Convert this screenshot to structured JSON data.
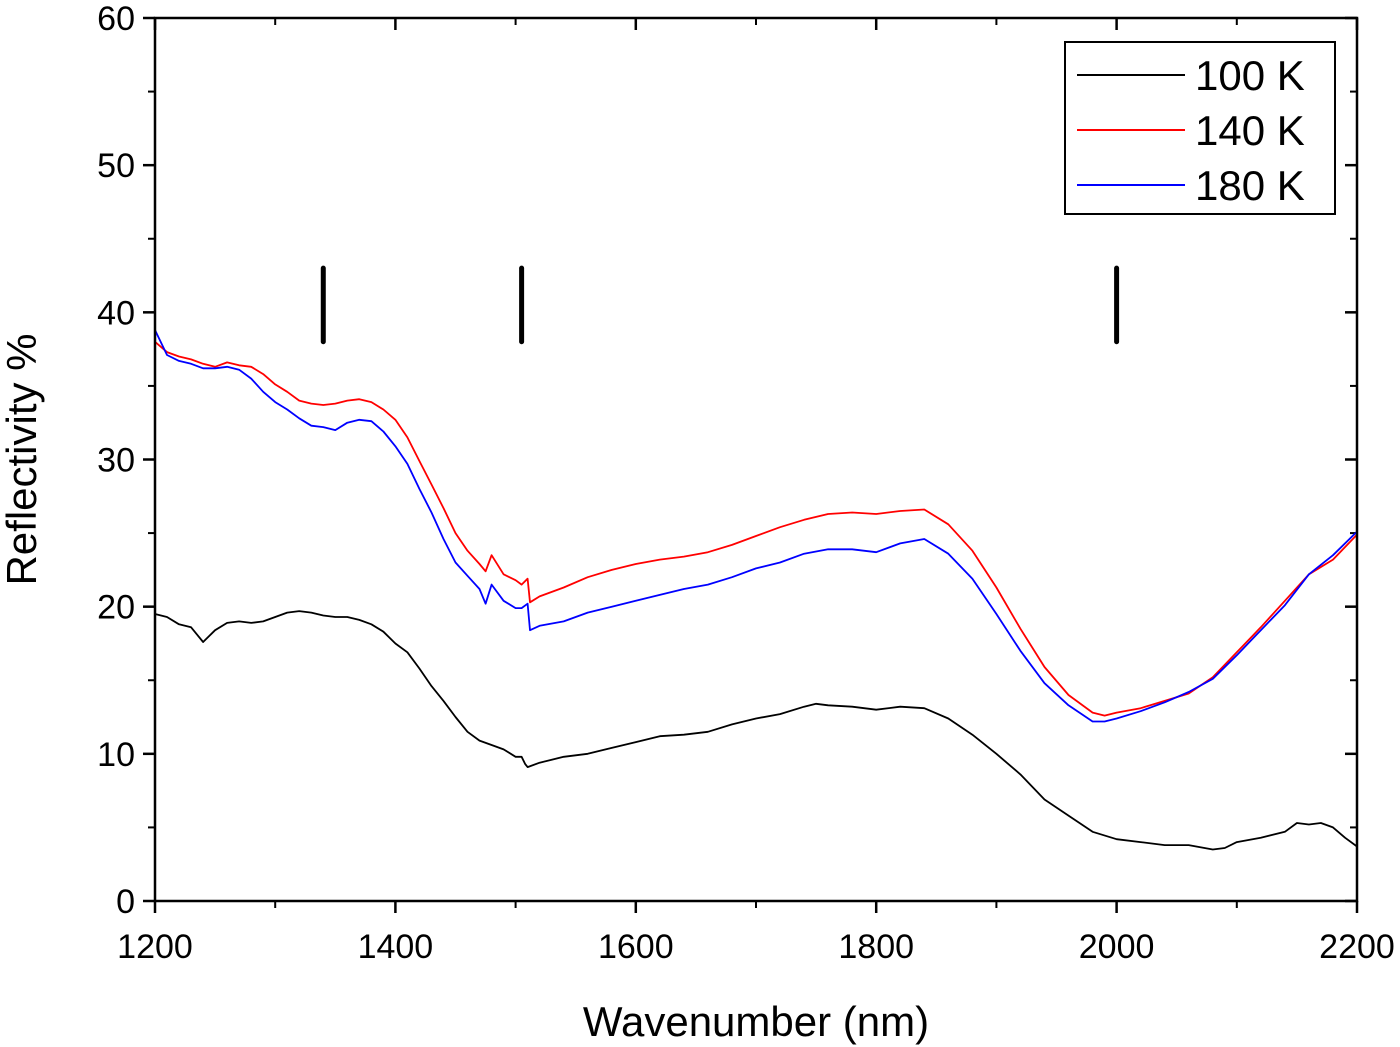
{
  "chart_data": {
    "type": "line",
    "title": "",
    "xlabel": "Wavenumber (nm)",
    "ylabel": "Reflectivity %",
    "xlim": [
      1200,
      2200
    ],
    "ylim": [
      0,
      60
    ],
    "x_ticks": [
      1200,
      1400,
      1600,
      1800,
      2000,
      2200
    ],
    "y_ticks": [
      0,
      10,
      20,
      30,
      40,
      50,
      60
    ],
    "x_tick_labels": [
      "1200",
      "1400",
      "1600",
      "1800",
      "2000",
      "2200"
    ],
    "y_tick_labels": [
      "0",
      "10",
      "20",
      "30",
      "40",
      "50",
      "60"
    ],
    "grid": false,
    "legend_position": "top-right",
    "markers": [
      {
        "x": 1340,
        "y_range": [
          38,
          43
        ]
      },
      {
        "x": 1505,
        "y_range": [
          38,
          43
        ]
      },
      {
        "x": 2000,
        "y_range": [
          38,
          43
        ]
      }
    ],
    "series": [
      {
        "name": "100 K",
        "color": "#000000",
        "points": [
          [
            1200,
            19.5
          ],
          [
            1210,
            19.3
          ],
          [
            1220,
            18.8
          ],
          [
            1230,
            18.6
          ],
          [
            1240,
            17.6
          ],
          [
            1250,
            18.4
          ],
          [
            1260,
            18.9
          ],
          [
            1270,
            19.0
          ],
          [
            1280,
            18.9
          ],
          [
            1290,
            19.0
          ],
          [
            1300,
            19.3
          ],
          [
            1310,
            19.6
          ],
          [
            1320,
            19.7
          ],
          [
            1330,
            19.6
          ],
          [
            1340,
            19.4
          ],
          [
            1350,
            19.3
          ],
          [
            1360,
            19.3
          ],
          [
            1370,
            19.1
          ],
          [
            1380,
            18.8
          ],
          [
            1390,
            18.3
          ],
          [
            1400,
            17.5
          ],
          [
            1410,
            16.9
          ],
          [
            1420,
            15.8
          ],
          [
            1430,
            14.6
          ],
          [
            1440,
            13.6
          ],
          [
            1450,
            12.5
          ],
          [
            1460,
            11.5
          ],
          [
            1470,
            10.9
          ],
          [
            1480,
            10.6
          ],
          [
            1490,
            10.3
          ],
          [
            1500,
            9.8
          ],
          [
            1505,
            9.8
          ],
          [
            1508,
            9.3
          ],
          [
            1510,
            9.1
          ],
          [
            1520,
            9.4
          ],
          [
            1530,
            9.6
          ],
          [
            1540,
            9.8
          ],
          [
            1560,
            10.0
          ],
          [
            1580,
            10.4
          ],
          [
            1600,
            10.8
          ],
          [
            1620,
            11.2
          ],
          [
            1640,
            11.3
          ],
          [
            1660,
            11.5
          ],
          [
            1680,
            12.0
          ],
          [
            1700,
            12.4
          ],
          [
            1720,
            12.7
          ],
          [
            1740,
            13.2
          ],
          [
            1750,
            13.4
          ],
          [
            1760,
            13.3
          ],
          [
            1780,
            13.2
          ],
          [
            1800,
            13.0
          ],
          [
            1820,
            13.2
          ],
          [
            1840,
            13.1
          ],
          [
            1860,
            12.4
          ],
          [
            1880,
            11.3
          ],
          [
            1900,
            10.0
          ],
          [
            1920,
            8.6
          ],
          [
            1940,
            6.9
          ],
          [
            1960,
            5.8
          ],
          [
            1980,
            4.7
          ],
          [
            2000,
            4.2
          ],
          [
            2020,
            4.0
          ],
          [
            2040,
            3.8
          ],
          [
            2060,
            3.8
          ],
          [
            2080,
            3.5
          ],
          [
            2090,
            3.6
          ],
          [
            2100,
            4.0
          ],
          [
            2120,
            4.3
          ],
          [
            2140,
            4.7
          ],
          [
            2150,
            5.3
          ],
          [
            2160,
            5.2
          ],
          [
            2170,
            5.3
          ],
          [
            2180,
            5.0
          ],
          [
            2190,
            4.3
          ],
          [
            2200,
            3.7
          ]
        ]
      },
      {
        "name": "140 K",
        "color": "#ff0000",
        "points": [
          [
            1200,
            38.0
          ],
          [
            1210,
            37.3
          ],
          [
            1220,
            37.0
          ],
          [
            1230,
            36.8
          ],
          [
            1240,
            36.5
          ],
          [
            1250,
            36.3
          ],
          [
            1260,
            36.6
          ],
          [
            1270,
            36.4
          ],
          [
            1280,
            36.3
          ],
          [
            1290,
            35.8
          ],
          [
            1300,
            35.1
          ],
          [
            1310,
            34.6
          ],
          [
            1320,
            34.0
          ],
          [
            1330,
            33.8
          ],
          [
            1340,
            33.7
          ],
          [
            1350,
            33.8
          ],
          [
            1360,
            34.0
          ],
          [
            1370,
            34.1
          ],
          [
            1380,
            33.9
          ],
          [
            1390,
            33.4
          ],
          [
            1400,
            32.7
          ],
          [
            1410,
            31.5
          ],
          [
            1420,
            29.9
          ],
          [
            1430,
            28.3
          ],
          [
            1440,
            26.7
          ],
          [
            1450,
            25.0
          ],
          [
            1460,
            23.8
          ],
          [
            1470,
            22.9
          ],
          [
            1475,
            22.4
          ],
          [
            1480,
            23.5
          ],
          [
            1490,
            22.2
          ],
          [
            1500,
            21.8
          ],
          [
            1505,
            21.5
          ],
          [
            1510,
            21.9
          ],
          [
            1512,
            20.3
          ],
          [
            1520,
            20.7
          ],
          [
            1540,
            21.3
          ],
          [
            1560,
            22.0
          ],
          [
            1580,
            22.5
          ],
          [
            1600,
            22.9
          ],
          [
            1620,
            23.2
          ],
          [
            1640,
            23.4
          ],
          [
            1660,
            23.7
          ],
          [
            1680,
            24.2
          ],
          [
            1700,
            24.8
          ],
          [
            1720,
            25.4
          ],
          [
            1740,
            25.9
          ],
          [
            1760,
            26.3
          ],
          [
            1780,
            26.4
          ],
          [
            1800,
            26.3
          ],
          [
            1820,
            26.5
          ],
          [
            1840,
            26.6
          ],
          [
            1860,
            25.6
          ],
          [
            1880,
            23.8
          ],
          [
            1900,
            21.3
          ],
          [
            1920,
            18.5
          ],
          [
            1940,
            15.9
          ],
          [
            1960,
            14.0
          ],
          [
            1980,
            12.8
          ],
          [
            1990,
            12.6
          ],
          [
            2000,
            12.8
          ],
          [
            2020,
            13.1
          ],
          [
            2040,
            13.6
          ],
          [
            2060,
            14.1
          ],
          [
            2080,
            15.2
          ],
          [
            2100,
            16.9
          ],
          [
            2120,
            18.6
          ],
          [
            2140,
            20.4
          ],
          [
            2160,
            22.2
          ],
          [
            2180,
            23.2
          ],
          [
            2200,
            24.9
          ]
        ]
      },
      {
        "name": "180 K",
        "color": "#0000ff",
        "points": [
          [
            1200,
            38.8
          ],
          [
            1210,
            37.1
          ],
          [
            1220,
            36.7
          ],
          [
            1230,
            36.5
          ],
          [
            1240,
            36.2
          ],
          [
            1250,
            36.2
          ],
          [
            1260,
            36.3
          ],
          [
            1270,
            36.1
          ],
          [
            1280,
            35.5
          ],
          [
            1290,
            34.6
          ],
          [
            1300,
            33.9
          ],
          [
            1310,
            33.4
          ],
          [
            1320,
            32.8
          ],
          [
            1330,
            32.3
          ],
          [
            1340,
            32.2
          ],
          [
            1350,
            32.0
          ],
          [
            1360,
            32.5
          ],
          [
            1370,
            32.7
          ],
          [
            1380,
            32.6
          ],
          [
            1390,
            31.9
          ],
          [
            1400,
            30.9
          ],
          [
            1410,
            29.7
          ],
          [
            1420,
            28.0
          ],
          [
            1430,
            26.4
          ],
          [
            1440,
            24.6
          ],
          [
            1450,
            23.0
          ],
          [
            1460,
            22.1
          ],
          [
            1470,
            21.2
          ],
          [
            1475,
            20.2
          ],
          [
            1480,
            21.5
          ],
          [
            1490,
            20.4
          ],
          [
            1500,
            19.9
          ],
          [
            1505,
            19.9
          ],
          [
            1510,
            20.2
          ],
          [
            1512,
            18.4
          ],
          [
            1520,
            18.7
          ],
          [
            1540,
            19.0
          ],
          [
            1560,
            19.6
          ],
          [
            1580,
            20.0
          ],
          [
            1600,
            20.4
          ],
          [
            1620,
            20.8
          ],
          [
            1640,
            21.2
          ],
          [
            1660,
            21.5
          ],
          [
            1680,
            22.0
          ],
          [
            1700,
            22.6
          ],
          [
            1720,
            23.0
          ],
          [
            1740,
            23.6
          ],
          [
            1760,
            23.9
          ],
          [
            1780,
            23.9
          ],
          [
            1800,
            23.7
          ],
          [
            1820,
            24.3
          ],
          [
            1840,
            24.6
          ],
          [
            1860,
            23.6
          ],
          [
            1880,
            21.9
          ],
          [
            1900,
            19.5
          ],
          [
            1920,
            17.0
          ],
          [
            1940,
            14.8
          ],
          [
            1960,
            13.3
          ],
          [
            1980,
            12.2
          ],
          [
            1990,
            12.2
          ],
          [
            2000,
            12.4
          ],
          [
            2020,
            12.9
          ],
          [
            2040,
            13.5
          ],
          [
            2060,
            14.2
          ],
          [
            2080,
            15.1
          ],
          [
            2100,
            16.7
          ],
          [
            2120,
            18.4
          ],
          [
            2140,
            20.1
          ],
          [
            2160,
            22.2
          ],
          [
            2180,
            23.5
          ],
          [
            2200,
            25.1
          ]
        ]
      }
    ]
  }
}
